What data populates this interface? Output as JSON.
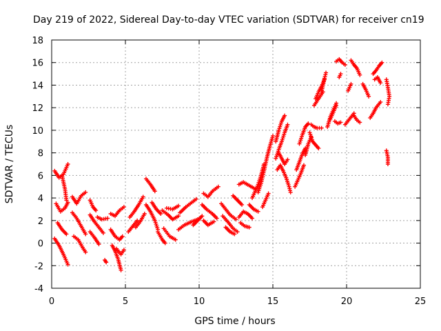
{
  "colors": {
    "series": "#ff0000",
    "grid": "#a0a0a0",
    "axis": "#000000"
  },
  "chart_data": {
    "type": "scatter",
    "title": "Day 219 of 2022, Sidereal Day-to-day VTEC variation (SDTVAR) for receiver cn19",
    "xlabel": "GPS time / hours",
    "ylabel": "SDTVAR / TECUs",
    "xlim": [
      0,
      25
    ],
    "ylim": [
      -4,
      18
    ],
    "xticks": [
      0,
      5,
      10,
      15,
      20,
      25
    ],
    "yticks": [
      -4,
      -2,
      0,
      2,
      4,
      6,
      8,
      10,
      12,
      14,
      16,
      18
    ],
    "grid": true,
    "marker": "plus",
    "series": [
      {
        "name": "SDTVAR",
        "tracks": [
          [
            [
              0.2,
              6.4
            ],
            [
              0.5,
              5.8
            ],
            [
              0.8,
              6.1
            ],
            [
              1.1,
              7.0
            ]
          ],
          [
            [
              0.3,
              3.5
            ],
            [
              0.6,
              2.8
            ],
            [
              0.9,
              3.1
            ],
            [
              1.1,
              3.6
            ]
          ],
          [
            [
              0.2,
              0.4
            ],
            [
              0.5,
              -0.2
            ],
            [
              0.8,
              -1.0
            ],
            [
              1.1,
              -1.9
            ]
          ],
          [
            [
              0.4,
              1.8
            ],
            [
              0.7,
              1.2
            ],
            [
              1.0,
              0.8
            ]
          ],
          [
            [
              0.7,
              6.0
            ],
            [
              0.9,
              4.8
            ],
            [
              1.0,
              3.8
            ]
          ],
          [
            [
              1.4,
              4.1
            ],
            [
              1.7,
              3.5
            ],
            [
              2.0,
              4.2
            ],
            [
              2.3,
              4.5
            ]
          ],
          [
            [
              1.4,
              2.7
            ],
            [
              1.7,
              2.2
            ],
            [
              2.0,
              1.5
            ],
            [
              2.3,
              0.8
            ]
          ],
          [
            [
              1.5,
              0.6
            ],
            [
              1.8,
              0.3
            ],
            [
              2.1,
              -0.4
            ],
            [
              2.3,
              -0.8
            ]
          ],
          [
            [
              2.6,
              3.8
            ],
            [
              2.8,
              3.2
            ],
            [
              3.0,
              2.9
            ]
          ],
          [
            [
              2.6,
              2.5
            ],
            [
              2.9,
              1.9
            ],
            [
              3.2,
              1.4
            ],
            [
              3.5,
              0.9
            ]
          ],
          [
            [
              2.6,
              1.0
            ],
            [
              2.9,
              0.5
            ],
            [
              3.2,
              -0.1
            ]
          ],
          [
            [
              3.1,
              2.3
            ],
            [
              3.4,
              2.1
            ],
            [
              3.8,
              2.2
            ]
          ],
          [
            [
              3.6,
              -1.5
            ],
            [
              3.7,
              -1.7
            ]
          ],
          [
            [
              4.0,
              2.6
            ],
            [
              4.3,
              2.4
            ],
            [
              4.6,
              2.9
            ],
            [
              4.9,
              3.2
            ]
          ],
          [
            [
              4.0,
              1.2
            ],
            [
              4.3,
              0.6
            ],
            [
              4.6,
              0.3
            ],
            [
              4.8,
              0.6
            ]
          ],
          [
            [
              4.1,
              -0.2
            ],
            [
              4.3,
              -0.7
            ],
            [
              4.5,
              -1.4
            ],
            [
              4.7,
              -2.4
            ]
          ],
          [
            [
              4.4,
              -0.5
            ],
            [
              4.7,
              -1.0
            ],
            [
              4.9,
              -0.6
            ]
          ],
          [
            [
              5.2,
              1.0
            ],
            [
              5.5,
              1.5
            ],
            [
              5.8,
              2.0
            ]
          ],
          [
            [
              5.3,
              2.3
            ],
            [
              5.6,
              2.8
            ],
            [
              5.9,
              3.4
            ],
            [
              6.2,
              4.1
            ]
          ],
          [
            [
              5.7,
              1.4
            ],
            [
              6.0,
              1.9
            ],
            [
              6.3,
              2.6
            ]
          ],
          [
            [
              6.4,
              5.7
            ],
            [
              6.7,
              5.2
            ],
            [
              7.0,
              4.6
            ]
          ],
          [
            [
              6.4,
              3.4
            ],
            [
              6.7,
              2.8
            ],
            [
              7.0,
              2.0
            ],
            [
              7.2,
              1.2
            ]
          ],
          [
            [
              6.8,
              3.6
            ],
            [
              7.1,
              3.0
            ],
            [
              7.4,
              2.6
            ]
          ],
          [
            [
              7.2,
              1.0
            ],
            [
              7.5,
              0.3
            ],
            [
              7.7,
              0.0
            ]
          ],
          [
            [
              7.5,
              2.9
            ],
            [
              7.9,
              2.5
            ],
            [
              8.2,
              2.1
            ],
            [
              8.6,
              2.4
            ]
          ],
          [
            [
              7.6,
              1.3
            ],
            [
              8.0,
              0.6
            ],
            [
              8.4,
              0.3
            ]
          ],
          [
            [
              7.8,
              3.1
            ],
            [
              8.2,
              3.0
            ],
            [
              8.6,
              3.3
            ]
          ],
          [
            [
              8.6,
              1.2
            ],
            [
              9.0,
              1.6
            ],
            [
              9.5,
              1.9
            ],
            [
              9.9,
              2.1
            ]
          ],
          [
            [
              8.7,
              2.7
            ],
            [
              9.1,
              3.2
            ],
            [
              9.5,
              3.6
            ],
            [
              9.8,
              3.9
            ]
          ],
          [
            [
              9.6,
              1.6
            ],
            [
              9.9,
              2.0
            ],
            [
              10.2,
              2.4
            ]
          ],
          [
            [
              10.3,
              4.4
            ],
            [
              10.6,
              4.1
            ],
            [
              10.9,
              4.6
            ],
            [
              11.3,
              5.0
            ]
          ],
          [
            [
              10.2,
              3.4
            ],
            [
              10.5,
              3.0
            ],
            [
              10.9,
              2.6
            ],
            [
              11.2,
              2.2
            ]
          ],
          [
            [
              10.3,
              2.0
            ],
            [
              10.6,
              1.6
            ],
            [
              11.0,
              1.9
            ]
          ],
          [
            [
              11.5,
              3.5
            ],
            [
              11.8,
              3.0
            ],
            [
              12.1,
              2.5
            ],
            [
              12.5,
              2.1
            ]
          ],
          [
            [
              11.6,
              2.4
            ],
            [
              12.0,
              1.8
            ],
            [
              12.3,
              1.3
            ],
            [
              12.6,
              1.0
            ]
          ],
          [
            [
              11.8,
              1.4
            ],
            [
              12.1,
              1.0
            ],
            [
              12.4,
              0.8
            ]
          ],
          [
            [
              12.3,
              4.2
            ],
            [
              12.6,
              3.8
            ],
            [
              12.9,
              3.4
            ]
          ],
          [
            [
              12.7,
              5.2
            ],
            [
              13.0,
              5.4
            ],
            [
              13.4,
              5.1
            ],
            [
              13.8,
              4.8
            ]
          ],
          [
            [
              12.7,
              2.3
            ],
            [
              13.0,
              2.8
            ],
            [
              13.3,
              2.6
            ],
            [
              13.6,
              2.2
            ]
          ],
          [
            [
              12.8,
              1.8
            ],
            [
              13.1,
              1.5
            ],
            [
              13.4,
              1.4
            ]
          ],
          [
            [
              13.4,
              3.4
            ],
            [
              13.7,
              3.0
            ],
            [
              14.0,
              2.8
            ]
          ],
          [
            [
              13.6,
              4.0
            ],
            [
              13.8,
              4.6
            ],
            [
              14.0,
              5.2
            ],
            [
              14.2,
              6.0
            ],
            [
              14.4,
              7.0
            ]
          ],
          [
            [
              14.0,
              4.5
            ],
            [
              14.2,
              5.3
            ],
            [
              14.4,
              6.4
            ],
            [
              14.6,
              7.6
            ],
            [
              14.8,
              8.6
            ],
            [
              15.0,
              9.5
            ]
          ],
          [
            [
              14.3,
              3.2
            ],
            [
              14.5,
              3.8
            ],
            [
              14.7,
              4.4
            ]
          ],
          [
            [
              15.2,
              9.0
            ],
            [
              15.4,
              10.0
            ],
            [
              15.6,
              10.8
            ],
            [
              15.8,
              11.3
            ]
          ],
          [
            [
              15.2,
              7.5
            ],
            [
              15.4,
              8.3
            ],
            [
              15.6,
              9.0
            ],
            [
              15.8,
              9.8
            ],
            [
              16.0,
              10.5
            ]
          ],
          [
            [
              15.3,
              6.5
            ],
            [
              15.5,
              6.9
            ],
            [
              15.7,
              6.4
            ],
            [
              15.9,
              5.8
            ],
            [
              16.1,
              5.0
            ],
            [
              16.2,
              4.5
            ]
          ],
          [
            [
              15.4,
              8.0
            ],
            [
              15.6,
              7.5
            ],
            [
              15.8,
              7.0
            ],
            [
              16.0,
              7.4
            ]
          ],
          [
            [
              16.5,
              5.0
            ],
            [
              16.7,
              5.6
            ],
            [
              16.9,
              6.2
            ],
            [
              17.1,
              6.9
            ]
          ],
          [
            [
              16.6,
              6.5
            ],
            [
              16.8,
              7.2
            ],
            [
              17.0,
              7.9
            ],
            [
              17.2,
              8.4
            ]
          ],
          [
            [
              16.8,
              8.8
            ],
            [
              17.0,
              9.6
            ],
            [
              17.2,
              10.3
            ],
            [
              17.4,
              10.6
            ]
          ],
          [
            [
              17.2,
              7.8
            ],
            [
              17.4,
              8.8
            ],
            [
              17.6,
              9.4
            ]
          ],
          [
            [
              17.5,
              9.8
            ],
            [
              17.7,
              9.0
            ],
            [
              17.9,
              8.7
            ],
            [
              18.1,
              8.4
            ]
          ],
          [
            [
              17.6,
              10.5
            ],
            [
              17.8,
              10.3
            ],
            [
              18.0,
              10.2
            ],
            [
              18.3,
              10.2
            ]
          ],
          [
            [
              17.8,
              12.2
            ],
            [
              18.0,
              12.6
            ],
            [
              18.2,
              13.0
            ],
            [
              18.4,
              13.4
            ]
          ],
          [
            [
              17.9,
              12.8
            ],
            [
              18.1,
              13.4
            ],
            [
              18.3,
              13.9
            ],
            [
              18.5,
              14.5
            ]
          ],
          [
            [
              18.3,
              13.4
            ],
            [
              18.5,
              14.6
            ],
            [
              18.6,
              15.1
            ]
          ],
          [
            [
              18.7,
              10.3
            ],
            [
              18.9,
              11.2
            ],
            [
              19.1,
              11.8
            ],
            [
              19.3,
              12.4
            ]
          ],
          [
            [
              18.9,
              11.0
            ],
            [
              19.1,
              11.6
            ],
            [
              19.3,
              12.2
            ]
          ],
          [
            [
              19.3,
              16.1
            ],
            [
              19.5,
              16.3
            ],
            [
              19.7,
              16.0
            ],
            [
              19.9,
              15.8
            ]
          ],
          [
            [
              19.2,
              10.8
            ],
            [
              19.4,
              10.6
            ],
            [
              19.6,
              10.7
            ]
          ],
          [
            [
              19.5,
              14.7
            ],
            [
              19.6,
              15.0
            ]
          ],
          [
            [
              19.9,
              10.5
            ],
            [
              20.2,
              11.0
            ],
            [
              20.5,
              11.5
            ]
          ],
          [
            [
              20.1,
              13.5
            ],
            [
              20.3,
              14.1
            ]
          ],
          [
            [
              20.3,
              16.2
            ],
            [
              20.5,
              15.8
            ],
            [
              20.7,
              15.5
            ],
            [
              20.9,
              14.9
            ]
          ],
          [
            [
              20.5,
              11.3
            ],
            [
              20.7,
              10.9
            ],
            [
              20.9,
              10.7
            ]
          ],
          [
            [
              21.1,
              14.1
            ],
            [
              21.3,
              13.6
            ],
            [
              21.5,
              13.0
            ]
          ],
          [
            [
              21.6,
              11.1
            ],
            [
              21.8,
              11.5
            ],
            [
              22.0,
              12.0
            ],
            [
              22.3,
              12.5
            ]
          ],
          [
            [
              21.8,
              15.0
            ],
            [
              22.0,
              15.3
            ],
            [
              22.2,
              15.7
            ],
            [
              22.4,
              16.0
            ]
          ],
          [
            [
              21.9,
              14.5
            ],
            [
              22.1,
              14.7
            ],
            [
              22.3,
              14.2
            ]
          ],
          [
            [
              22.7,
              14.5
            ],
            [
              22.8,
              13.8
            ],
            [
              22.9,
              13.0
            ],
            [
              22.8,
              12.3
            ]
          ],
          [
            [
              22.7,
              8.2
            ],
            [
              22.8,
              7.6
            ],
            [
              22.8,
              7.0
            ]
          ]
        ]
      }
    ]
  }
}
